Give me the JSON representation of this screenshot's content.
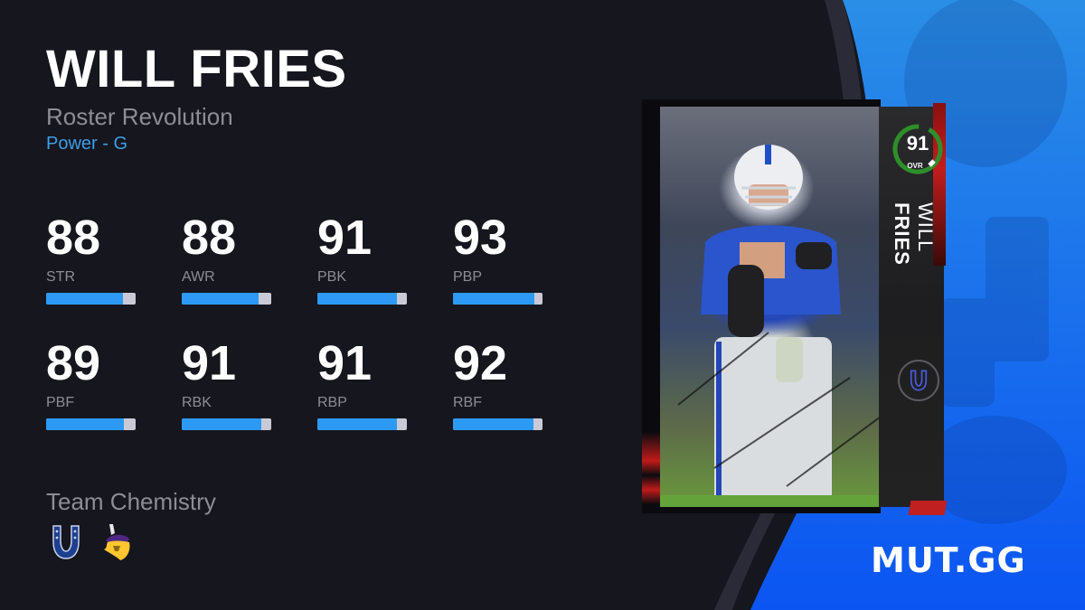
{
  "player": {
    "name": "WILL FRIES",
    "first_name": "WILL",
    "last_name": "FRIES",
    "program": "Roster Revolution",
    "archetype": "Power - G"
  },
  "stats": [
    {
      "label": "STR",
      "value": "88",
      "pct": 88
    },
    {
      "label": "AWR",
      "value": "88",
      "pct": 88
    },
    {
      "label": "PBK",
      "value": "91",
      "pct": 91
    },
    {
      "label": "PBP",
      "value": "93",
      "pct": 93
    },
    {
      "label": "PBF",
      "value": "89",
      "pct": 89
    },
    {
      "label": "RBK",
      "value": "91",
      "pct": 91
    },
    {
      "label": "RBP",
      "value": "91",
      "pct": 91
    },
    {
      "label": "RBF",
      "value": "92",
      "pct": 92
    }
  ],
  "team_chemistry": {
    "label": "Team Chemistry",
    "teams": [
      "colts-horseshoe-icon",
      "vikings-logo-icon"
    ]
  },
  "card": {
    "ovr": "91",
    "ovr_label": "OVR",
    "team_icon": "colts-horseshoe-icon"
  },
  "brand": {
    "logo": "MUT.GG"
  },
  "colors": {
    "background": "#15161e",
    "accent_blue": "#2c9af5",
    "archetype_blue": "#3d9fe6",
    "panel_blue": "#0d5cf0",
    "ovr_ring_green": "#2e8f2a",
    "muted_text": "#8c8d95"
  }
}
